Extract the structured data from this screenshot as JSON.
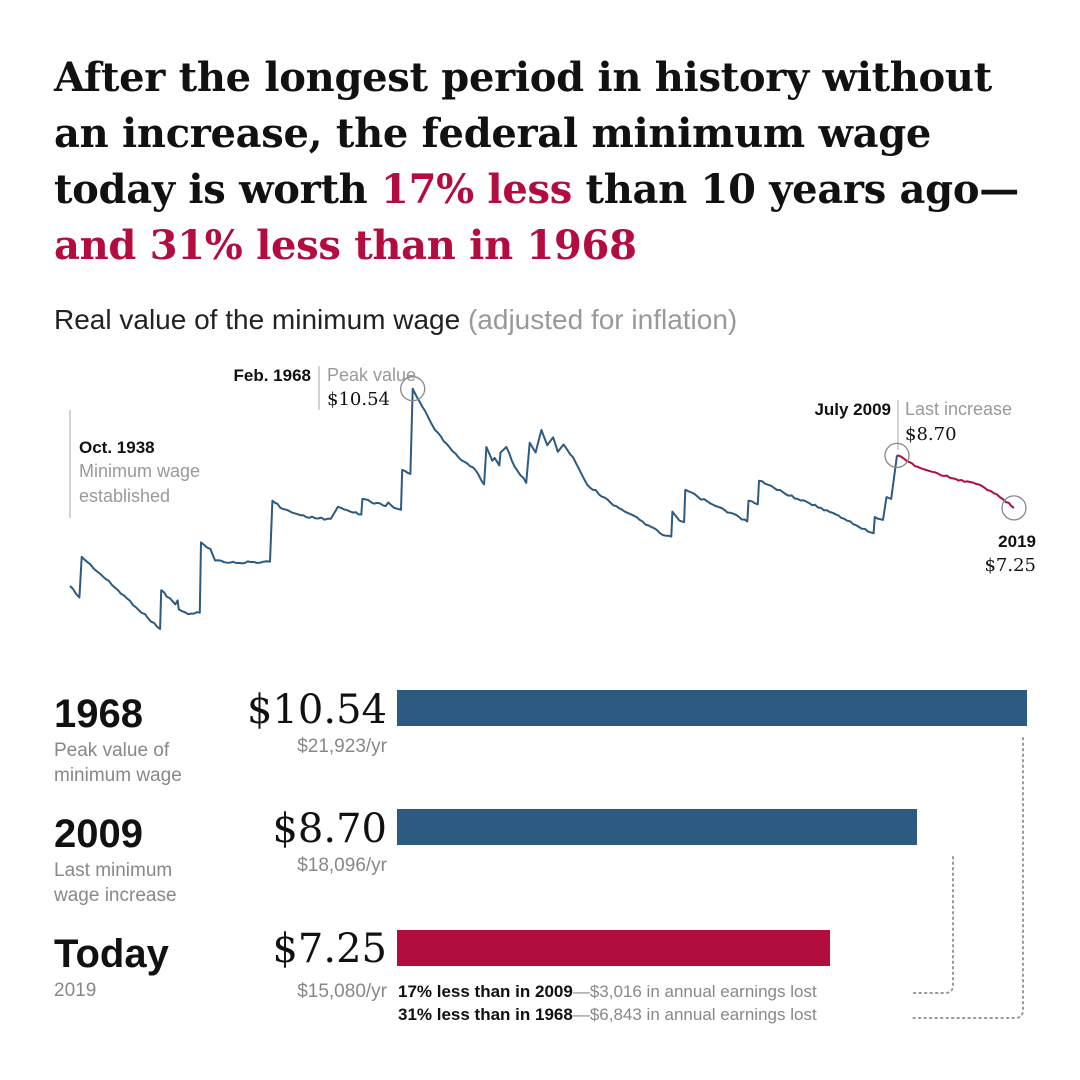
{
  "headline": {
    "part1": "After the longest period in history without an increase, the federal minimum wage today is worth ",
    "highlight1": "17% less",
    "part2": " than 10 years ago—",
    "highlight2": "and 31% less than in 1968"
  },
  "subtitle": {
    "main": "Real value of the minimum wage",
    "muted": "(adjusted for inflation)"
  },
  "colors": {
    "blue": "#2d5a80",
    "red": "#b30c3e",
    "gray": "#999999"
  },
  "chart_data": {
    "type": "line",
    "title": "Real value of the minimum wage",
    "subtitle": "(adjusted for inflation)",
    "ylim": [
      3.8,
      11.0
    ],
    "xlim": [
      1938.8,
      2019.5
    ],
    "series": [
      {
        "color": "blue",
        "points": [
          [
            1938.8,
            5.1
          ],
          [
            1939.6,
            4.78
          ],
          [
            1939.8,
            5.9
          ],
          [
            1946.5,
            3.91
          ],
          [
            1946.6,
            4.98
          ],
          [
            1947.8,
            4.59
          ],
          [
            1948.0,
            4.7
          ],
          [
            1948.1,
            4.45
          ],
          [
            1948.9,
            4.32
          ],
          [
            1949.9,
            4.36
          ],
          [
            1950.0,
            6.3
          ],
          [
            1950.8,
            6.12
          ],
          [
            1951.2,
            5.8
          ],
          [
            1953.0,
            5.73
          ],
          [
            1954.5,
            5.76
          ],
          [
            1955.9,
            5.77
          ],
          [
            1956.1,
            7.45
          ],
          [
            1957.0,
            7.22
          ],
          [
            1958.5,
            7.05
          ],
          [
            1960.0,
            6.96
          ],
          [
            1961.1,
            6.95
          ],
          [
            1961.7,
            7.28
          ],
          [
            1963.0,
            7.12
          ],
          [
            1963.7,
            7.07
          ],
          [
            1963.8,
            7.5
          ],
          [
            1965.8,
            7.3
          ],
          [
            1966.0,
            7.4
          ],
          [
            1966.5,
            7.25
          ],
          [
            1967.1,
            7.2
          ],
          [
            1967.2,
            8.3
          ],
          [
            1967.9,
            8.19
          ],
          [
            1968.1,
            10.54
          ],
          [
            1970.0,
            9.4
          ],
          [
            1972.0,
            8.65
          ],
          [
            1973.5,
            8.28
          ],
          [
            1974.2,
            7.9
          ],
          [
            1974.4,
            8.93
          ],
          [
            1974.9,
            8.55
          ],
          [
            1975.1,
            8.63
          ],
          [
            1975.5,
            8.42
          ],
          [
            1975.6,
            8.78
          ],
          [
            1976.1,
            8.93
          ],
          [
            1976.8,
            8.4
          ],
          [
            1977.8,
            7.94
          ],
          [
            1978.1,
            9.05
          ],
          [
            1978.6,
            8.78
          ],
          [
            1979.1,
            9.4
          ],
          [
            1979.6,
            8.98
          ],
          [
            1980.1,
            9.2
          ],
          [
            1980.5,
            8.8
          ],
          [
            1981.0,
            9.0
          ],
          [
            1981.8,
            8.65
          ],
          [
            1983.0,
            7.9
          ],
          [
            1985.0,
            7.4
          ],
          [
            1987.5,
            6.92
          ],
          [
            1989.5,
            6.5
          ],
          [
            1990.2,
            6.46
          ],
          [
            1990.3,
            7.15
          ],
          [
            1990.9,
            6.9
          ],
          [
            1991.3,
            6.86
          ],
          [
            1991.4,
            7.75
          ],
          [
            1992.5,
            7.55
          ],
          [
            1994.0,
            7.3
          ],
          [
            1996.0,
            7.0
          ],
          [
            1996.7,
            6.88
          ],
          [
            1996.8,
            7.45
          ],
          [
            1997.6,
            7.35
          ],
          [
            1997.7,
            8.0
          ],
          [
            1999.0,
            7.8
          ],
          [
            2001.0,
            7.5
          ],
          [
            2003.0,
            7.25
          ],
          [
            2005.0,
            6.95
          ],
          [
            2007.0,
            6.6
          ],
          [
            2007.5,
            6.55
          ],
          [
            2007.6,
            7.0
          ],
          [
            2008.3,
            6.92
          ],
          [
            2008.6,
            7.55
          ],
          [
            2009.0,
            7.5
          ],
          [
            2009.5,
            8.7
          ]
        ]
      },
      {
        "color": "red",
        "points": [
          [
            2009.5,
            8.7
          ],
          [
            2010.3,
            8.55
          ],
          [
            2011.5,
            8.35
          ],
          [
            2013.0,
            8.2
          ],
          [
            2014.5,
            8.05
          ],
          [
            2016.0,
            7.95
          ],
          [
            2017.5,
            7.72
          ],
          [
            2018.6,
            7.48
          ],
          [
            2019.5,
            7.25
          ]
        ]
      }
    ],
    "annotations": [
      {
        "date": "Oct. 1938",
        "text1": "Minimum wage",
        "text2": "established",
        "x": 1938.8
      },
      {
        "date": "Feb. 1968",
        "text1": "Peak value",
        "value": "$10.54",
        "x": 1968.1,
        "y": 10.54
      },
      {
        "date": "July 2009",
        "text1": "Last increase",
        "value": "$8.70",
        "x": 2009.5,
        "y": 8.7
      },
      {
        "date": "2019",
        "value": "$7.25",
        "x": 2019.5,
        "y": 7.25
      }
    ]
  },
  "comparison": {
    "max_value": 10.54,
    "rows": [
      {
        "label": "1968",
        "desc1": "Peak value of",
        "desc2": "minimum wage",
        "price": "$10.54",
        "annual": "$21,923/yr",
        "value": 10.54,
        "color": "blue"
      },
      {
        "label": "2009",
        "desc1": "Last minimum",
        "desc2": "wage increase",
        "price": "$8.70",
        "annual": "$18,096/yr",
        "value": 8.7,
        "color": "blue"
      },
      {
        "label": "Today",
        "desc1": "2019",
        "desc2": "",
        "price": "$7.25",
        "annual": "$15,080/yr",
        "value": 7.25,
        "color": "red"
      }
    ],
    "notes": [
      {
        "bold": "17% less than in 2009",
        "rest": "—$3,016 in annual earnings lost"
      },
      {
        "bold": "31% less than in 1968",
        "rest": "—$6,843 in annual earnings lost"
      }
    ]
  }
}
